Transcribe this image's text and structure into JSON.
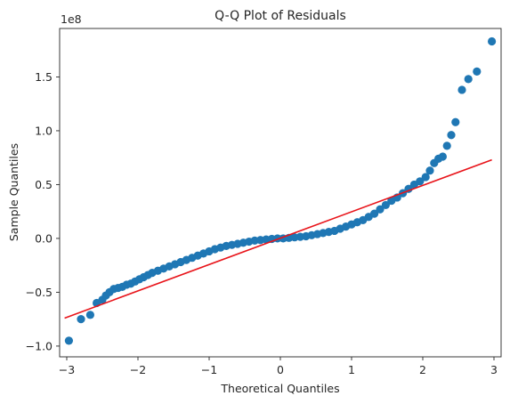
{
  "chart_data": {
    "type": "scatter",
    "title": "Q-Q Plot of Residuals",
    "xlabel": "Theoretical Quantiles",
    "ylabel": "Sample Quantiles",
    "y_offset_label": "1e8",
    "xlim": [
      -3.1,
      3.1
    ],
    "ylim": [
      -1.1,
      1.95
    ],
    "x_ticks": [
      -3,
      -2,
      -1,
      0,
      1,
      2,
      3
    ],
    "x_tick_labels": [
      "−3",
      "−2",
      "−1",
      "0",
      "1",
      "2",
      "3"
    ],
    "y_ticks": [
      -1.0,
      -0.5,
      0.0,
      0.5,
      1.0,
      1.5
    ],
    "y_tick_labels": [
      "−1.0",
      "−0.5",
      "0.0",
      "0.5",
      "1.0",
      "1.5"
    ],
    "grid": false,
    "points_color": "#1f77b4",
    "line_color": "#e8141a",
    "series": [
      {
        "kind": "points",
        "x": [
          -2.97,
          -2.8,
          -2.67,
          -2.58,
          -2.5,
          -2.45,
          -2.4,
          -2.34,
          -2.28,
          -2.22,
          -2.16,
          -2.1,
          -2.04,
          -1.98,
          -1.92,
          -1.86,
          -1.8,
          -1.72,
          -1.64,
          -1.56,
          -1.48,
          -1.4,
          -1.32,
          -1.24,
          -1.16,
          -1.08,
          -1.0,
          -0.92,
          -0.84,
          -0.76,
          -0.68,
          -0.6,
          -0.52,
          -0.44,
          -0.36,
          -0.28,
          -0.2,
          -0.12,
          -0.04,
          0.04,
          0.12,
          0.2,
          0.28,
          0.36,
          0.44,
          0.52,
          0.6,
          0.68,
          0.76,
          0.84,
          0.92,
          1.0,
          1.08,
          1.16,
          1.24,
          1.32,
          1.4,
          1.48,
          1.56,
          1.64,
          1.72,
          1.8,
          1.88,
          1.96,
          2.04,
          2.1,
          2.16,
          2.22,
          2.28,
          2.34,
          2.4,
          2.46,
          2.55,
          2.64,
          2.76,
          2.97
        ],
        "y": [
          -0.95,
          -0.75,
          -0.71,
          -0.6,
          -0.57,
          -0.53,
          -0.5,
          -0.47,
          -0.46,
          -0.45,
          -0.43,
          -0.42,
          -0.4,
          -0.38,
          -0.36,
          -0.34,
          -0.32,
          -0.3,
          -0.28,
          -0.26,
          -0.24,
          -0.22,
          -0.2,
          -0.18,
          -0.16,
          -0.14,
          -0.12,
          -0.1,
          -0.085,
          -0.07,
          -0.06,
          -0.05,
          -0.04,
          -0.03,
          -0.02,
          -0.015,
          -0.01,
          -0.005,
          0.0,
          0.0,
          0.005,
          0.01,
          0.015,
          0.02,
          0.03,
          0.04,
          0.05,
          0.06,
          0.07,
          0.09,
          0.11,
          0.13,
          0.15,
          0.17,
          0.2,
          0.23,
          0.27,
          0.31,
          0.35,
          0.38,
          0.42,
          0.46,
          0.5,
          0.53,
          0.57,
          0.63,
          0.7,
          0.74,
          0.76,
          0.86,
          0.96,
          1.08,
          1.38,
          1.48,
          1.55,
          1.83
        ]
      },
      {
        "kind": "line",
        "x": [
          -3.03,
          2.97
        ],
        "y": [
          -0.74,
          0.73
        ]
      }
    ]
  }
}
